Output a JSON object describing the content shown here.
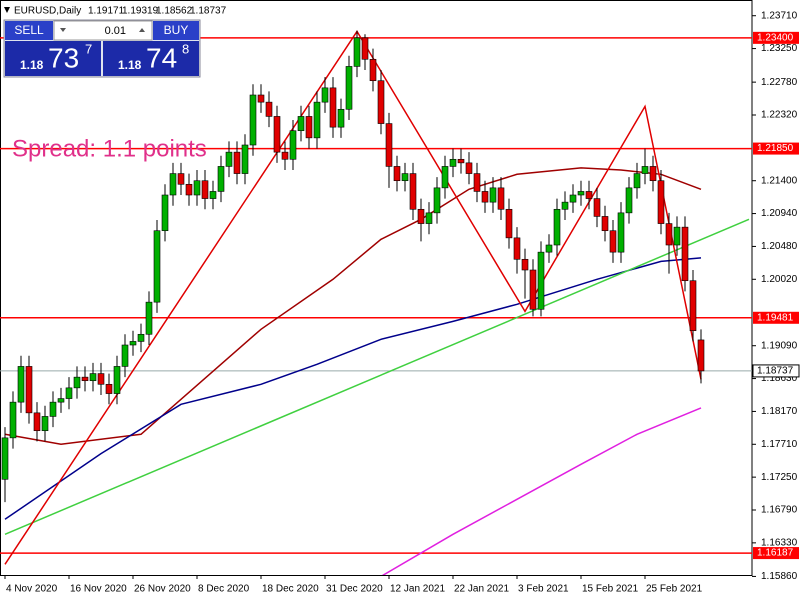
{
  "chart_data": {
    "type": "candlestick",
    "symbol": "EURUSD,Daily",
    "annotation": "Spread: 1.1 points",
    "panel": {
      "sell": "SELL",
      "lot": "0.01",
      "buy": "BUY",
      "bid": [
        "1.18",
        "73",
        "7"
      ],
      "ask": [
        "1.18",
        "74",
        "8"
      ]
    },
    "categories": [
      "4 Nov 2020",
      null,
      null,
      null,
      null,
      null,
      null,
      null,
      "16 Nov 2020",
      null,
      null,
      null,
      null,
      null,
      null,
      null,
      "26 Nov 2020",
      null,
      null,
      null,
      null,
      null,
      null,
      null,
      "8 Dec 2020",
      null,
      null,
      null,
      null,
      null,
      null,
      null,
      "18 Dec 2020",
      null,
      null,
      null,
      null,
      null,
      null,
      null,
      "31 Dec 2020",
      null,
      null,
      null,
      null,
      null,
      null,
      null,
      "12 Jan 2021",
      null,
      null,
      null,
      null,
      null,
      null,
      null,
      "22 Jan 2021",
      null,
      null,
      null,
      null,
      null,
      null,
      null,
      "3 Feb 2021",
      null,
      null,
      null,
      null,
      null,
      null,
      null,
      "15 Feb 2021",
      null,
      null,
      null,
      null,
      null,
      null,
      null,
      "25 Feb 2021",
      null,
      null,
      null,
      null,
      null,
      null,
      null
    ],
    "open": [
      1.1722,
      1.178,
      1.183,
      1.188,
      1.1815,
      1.179,
      1.181,
      1.183,
      1.1835,
      1.185,
      1.1865,
      1.186,
      1.187,
      1.1855,
      1.1842,
      1.188,
      1.191,
      1.1915,
      1.1925,
      1.197,
      1.207,
      1.212,
      1.215,
      1.2135,
      1.212,
      1.214,
      1.2115,
      1.2125,
      1.216,
      1.218,
      1.215,
      1.219,
      1.226,
      1.225,
      1.223,
      1.218,
      1.217,
      1.221,
      1.223,
      1.22,
      1.225,
      1.227,
      1.2215,
      1.224,
      1.23,
      1.234,
      1.231,
      1.228,
      1.222,
      1.216,
      1.214,
      1.215,
      1.21,
      1.208,
      1.2095,
      1.213,
      1.216,
      1.217,
      1.2165,
      1.215,
      1.2125,
      1.211,
      1.213,
      1.21,
      1.206,
      1.203,
      1.2015,
      1.196,
      1.204,
      1.205,
      1.21,
      1.211,
      1.212,
      1.2125,
      1.2115,
      1.209,
      1.207,
      1.204,
      1.2095,
      1.213,
      1.215,
      1.216,
      1.214,
      1.208,
      1.205,
      1.2075,
      1.2,
      1.19171
    ],
    "high": [
      1.1795,
      1.1845,
      1.1895,
      1.1895,
      1.183,
      1.1825,
      1.1845,
      1.185,
      1.1865,
      1.188,
      1.188,
      1.1885,
      1.1885,
      1.187,
      1.1895,
      1.1925,
      1.193,
      1.194,
      1.1985,
      1.2085,
      1.2135,
      1.2165,
      1.2165,
      1.215,
      1.2155,
      1.2155,
      1.214,
      1.2175,
      1.2195,
      1.2195,
      1.2205,
      1.2275,
      1.2275,
      1.2265,
      1.2245,
      1.2195,
      1.2225,
      1.2245,
      1.2245,
      1.2265,
      1.2285,
      1.2285,
      1.2255,
      1.2315,
      1.235,
      1.2345,
      1.2325,
      1.2295,
      1.2235,
      1.2175,
      1.2165,
      1.2165,
      1.2115,
      1.211,
      1.2145,
      1.2175,
      1.2185,
      1.2185,
      1.218,
      1.2165,
      1.214,
      1.2145,
      1.2145,
      1.2115,
      1.2075,
      1.2045,
      1.203,
      1.2055,
      1.2065,
      1.2115,
      1.2125,
      1.2135,
      1.214,
      1.214,
      1.213,
      1.2105,
      1.2085,
      1.211,
      1.2145,
      1.2165,
      1.2185,
      1.2175,
      1.2155,
      1.2095,
      1.209,
      1.209,
      1.2015,
      1.19319
    ],
    "low": [
      1.169,
      1.1765,
      1.1815,
      1.18,
      1.1775,
      1.1775,
      1.1795,
      1.1815,
      1.182,
      1.1835,
      1.1845,
      1.1845,
      1.184,
      1.1827,
      1.1827,
      1.1865,
      1.1895,
      1.19,
      1.191,
      1.1955,
      1.2055,
      1.2105,
      1.212,
      1.2105,
      1.2105,
      1.21,
      1.21,
      1.211,
      1.2145,
      1.2135,
      1.2135,
      1.2175,
      1.2235,
      1.2215,
      1.2165,
      1.2155,
      1.2155,
      1.2195,
      1.2185,
      1.2185,
      1.2235,
      1.22,
      1.22,
      1.2225,
      1.2285,
      1.2295,
      1.2265,
      1.2205,
      1.213,
      1.2125,
      1.2125,
      1.2085,
      1.2055,
      1.2065,
      1.208,
      1.2115,
      1.2145,
      1.215,
      1.2135,
      1.211,
      1.2095,
      1.2095,
      1.2085,
      1.2045,
      1.201,
      1.1975,
      1.195,
      1.195,
      1.2025,
      1.2035,
      1.2085,
      1.2095,
      1.2105,
      1.21,
      1.2075,
      1.2055,
      1.2025,
      1.2025,
      1.208,
      1.2115,
      1.2135,
      1.2125,
      1.2065,
      1.201,
      1.2035,
      1.1985,
      1.1915,
      1.18562
    ],
    "close": [
      1.178,
      1.183,
      1.188,
      1.1815,
      1.179,
      1.181,
      1.183,
      1.1835,
      1.185,
      1.1865,
      1.186,
      1.187,
      1.1855,
      1.1842,
      1.188,
      1.191,
      1.1915,
      1.1925,
      1.197,
      1.207,
      1.212,
      1.215,
      1.2135,
      1.212,
      1.214,
      1.2115,
      1.2125,
      1.216,
      1.218,
      1.215,
      1.219,
      1.226,
      1.225,
      1.223,
      1.218,
      1.217,
      1.221,
      1.223,
      1.22,
      1.225,
      1.227,
      1.2215,
      1.224,
      1.23,
      1.234,
      1.231,
      1.228,
      1.222,
      1.216,
      1.214,
      1.215,
      1.21,
      1.208,
      1.2095,
      1.213,
      1.216,
      1.217,
      1.2165,
      1.215,
      1.2125,
      1.211,
      1.213,
      1.21,
      1.206,
      1.203,
      1.2015,
      1.196,
      1.204,
      1.205,
      1.21,
      1.211,
      1.212,
      1.2125,
      1.2115,
      1.209,
      1.207,
      1.204,
      1.2095,
      1.213,
      1.215,
      1.216,
      1.214,
      1.208,
      1.205,
      1.2075,
      1.2,
      1.193,
      1.18737
    ],
    "up_color": "#00b000",
    "down_color": "#e00000",
    "lines": [
      {
        "color": "#a00000",
        "x": [
          0,
          7,
          17,
          22,
          32,
          41,
          47,
          52,
          58,
          64,
          72,
          77,
          82,
          87
        ],
        "values": [
          1.1785,
          1.1771,
          1.1785,
          1.1834,
          1.1932,
          1.2002,
          1.2058,
          1.2086,
          1.2128,
          1.2149,
          1.2158,
          1.2155,
          1.2149,
          1.2128
        ]
      },
      {
        "color": "#00008b",
        "x": [
          0,
          12,
          22,
          32,
          39,
          47,
          56,
          64,
          74,
          82,
          87
        ],
        "values": [
          1.1666,
          1.1758,
          1.1827,
          1.1855,
          1.1883,
          1.1918,
          1.1943,
          1.1967,
          1.2002,
          1.2027,
          1.2032
        ]
      },
      {
        "color": "#e020e0",
        "x": [
          47,
          56,
          64,
          72,
          79,
          87
        ],
        "values": [
          1.1586,
          1.1645,
          1.1694,
          1.1743,
          1.1785,
          1.1822
        ]
      },
      {
        "color": "#40d040",
        "x": [
          0,
          93
        ],
        "values": [
          1.1645,
          1.2086
        ]
      },
      {
        "color": "#e00000",
        "x": [
          0,
          44,
          65,
          80,
          87
        ],
        "values": [
          1.1603,
          1.2349,
          1.1957,
          1.2244,
          1.1862
        ]
      }
    ],
    "levels": [
      {
        "value": 1.234,
        "label": "1.23400"
      },
      {
        "value": 1.2185,
        "label": "1.21850"
      },
      1.19481,
      1.16187
    ],
    "level_color": "#ff0000",
    "xlim": [
      -0.625,
      93.375
    ],
    "ylim": [
      1.1588,
      1.2393
    ],
    "yticks": [
      {
        "value": 1.2371,
        "label": "1.23710"
      },
      {
        "value": 1.2325,
        "label": "1.23250"
      },
      {
        "value": 1.2278,
        "label": "1.22780"
      },
      {
        "value": 1.2232,
        "label": "1.22320"
      },
      {
        "value": 1.214,
        "label": "1.21400"
      },
      {
        "value": 1.2094,
        "label": "1.20940"
      },
      {
        "value": 1.2048,
        "label": "1.20480"
      },
      {
        "value": 1.2002,
        "label": "1.20020"
      },
      {
        "value": 1.1909,
        "label": "1.19090"
      },
      {
        "value": 1.1863,
        "label": "1.18630"
      },
      {
        "value": 1.1817,
        "label": "1.18170"
      },
      {
        "value": 1.1771,
        "label": "1.17710"
      },
      {
        "value": 1.1725,
        "label": "1.17250"
      },
      {
        "value": 1.1679,
        "label": "1.16790"
      },
      {
        "value": 1.1633,
        "label": "1.16330"
      },
      {
        "value": 1.1586,
        "label": "1.15860"
      }
    ]
  }
}
